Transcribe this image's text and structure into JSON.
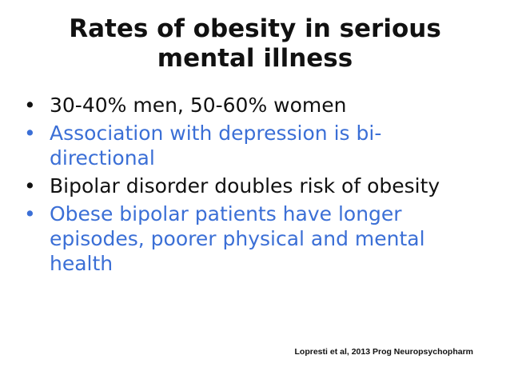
{
  "slide": {
    "title_line1": "Rates of obesity in serious",
    "title_line2": "mental illness",
    "bullet_symbol": "•",
    "bullets": [
      {
        "text": "30-40% men, 50-60% women",
        "color": "#111111"
      },
      {
        "text": "Association with depression is bi-directional",
        "color": "#3b6fd6"
      },
      {
        "text": "Bipolar disorder doubles risk of obesity",
        "color": "#111111"
      },
      {
        "text": "Obese bipolar patients have longer episodes, poorer physical and mental health",
        "color": "#3b6fd6"
      }
    ],
    "citation": "Lopresti et al, 2013 Prog Neuropsychopharm"
  }
}
